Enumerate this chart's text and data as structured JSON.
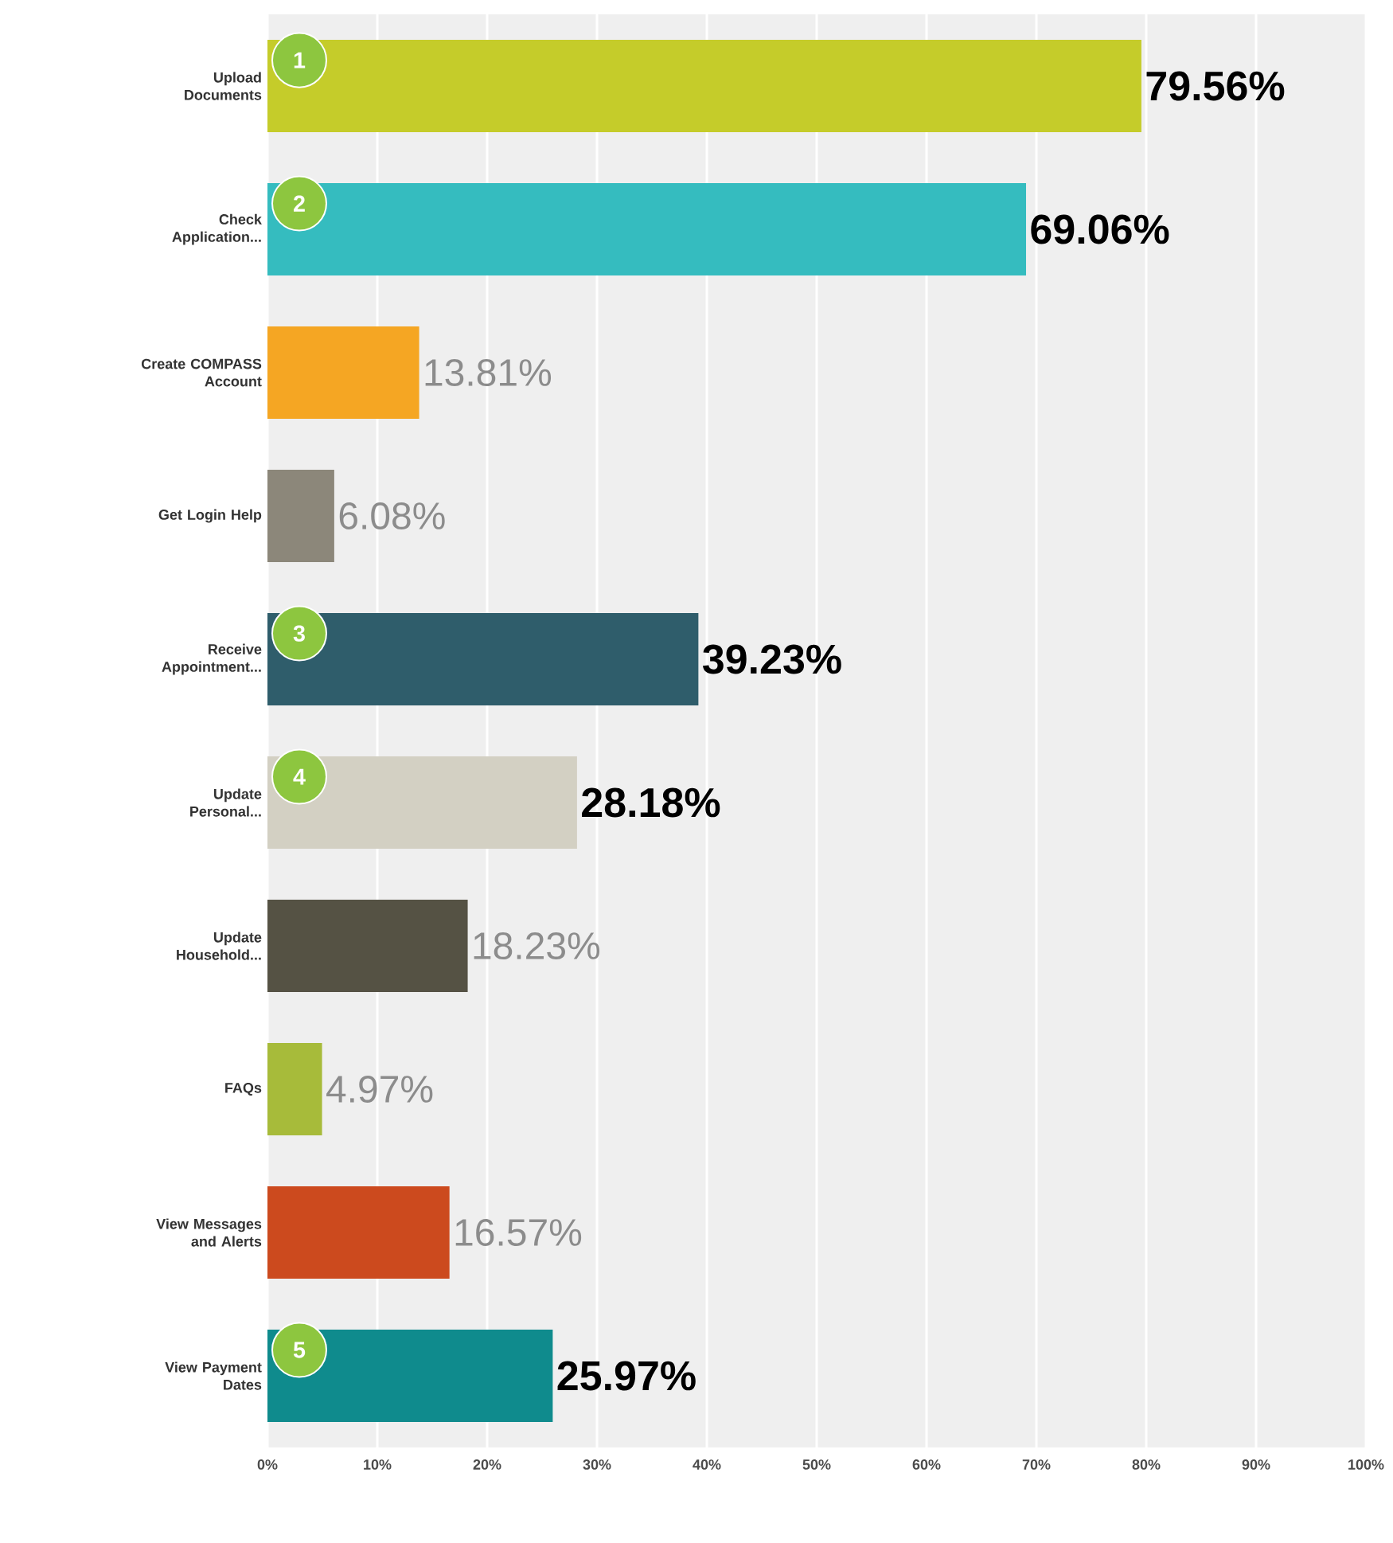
{
  "chart_data": {
    "type": "bar",
    "orientation": "horizontal",
    "categories": [
      "Upload Documents",
      "Check Application...",
      "Create COMPASS Account",
      "Get Login Help",
      "Receive Appointment...",
      "Update Personal...",
      "Update Household...",
      "FAQs",
      "View Messages and Alerts",
      "View Payment Dates"
    ],
    "values": [
      79.56,
      69.06,
      13.81,
      6.08,
      39.23,
      28.18,
      18.23,
      4.97,
      16.57,
      25.97
    ],
    "colors": [
      "#c5cc2a",
      "#35bcbf",
      "#f5a623",
      "#8c877a",
      "#2f5d6b",
      "#d3d0c3",
      "#555244",
      "#a7bb3a",
      "#cc4a1e",
      "#0f8b8d"
    ],
    "value_labels": [
      "**79.56%**",
      "**69.06%**",
      "13.81%",
      "6.08%",
      "**39.23%**",
      "**28.18%**",
      "18.23%",
      "4.97%",
      "16.57%",
      "**25.97%**"
    ],
    "xlim": [
      0,
      100
    ],
    "xticks": [
      {
        "value": 0,
        "label": "0%"
      },
      {
        "value": 10,
        "label": "10%"
      },
      {
        "value": 20,
        "label": "20%"
      },
      {
        "value": 30,
        "label": "30%"
      },
      {
        "value": 40,
        "label": "40%"
      },
      {
        "value": 50,
        "label": "50%"
      },
      {
        "value": 60,
        "label": "60%"
      },
      {
        "value": 70,
        "label": "70%"
      },
      {
        "value": 80,
        "label": "80%"
      },
      {
        "value": 90,
        "label": "90%"
      },
      {
        "value": 100,
        "label": "100%"
      }
    ],
    "grid": "x",
    "annotations": [
      "1",
      "2",
      "3",
      "4",
      "5"
    ]
  }
}
